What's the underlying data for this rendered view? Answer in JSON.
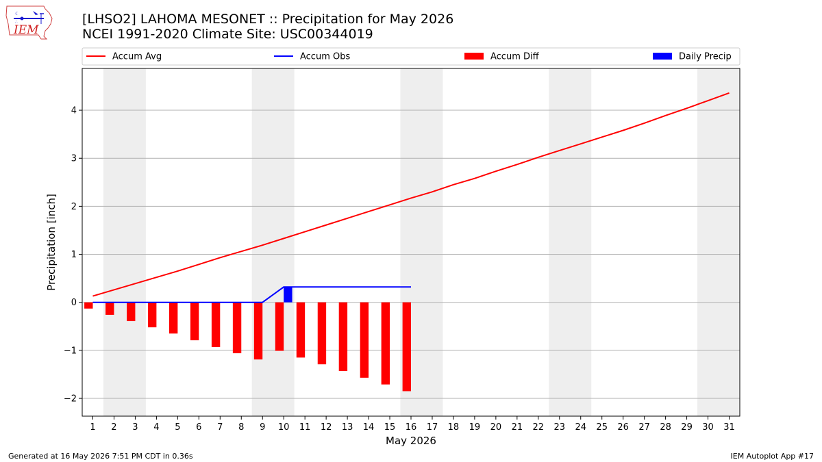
{
  "header": {
    "title_line1": "[LHSO2] LAHOMA MESONET :: Precipitation for May 2026",
    "title_line2": "NCEI 1991-2020 Climate Site: USC00344019"
  },
  "logo": {
    "text": "IEM",
    "icon": "iem-iowa-map-logo-icon"
  },
  "footer": {
    "left": "Generated at 16 May 2026 7:51 PM CDT in 0.36s",
    "right": "IEM Autoplot App #17"
  },
  "colors": {
    "avg": "#ff0000",
    "obs": "#0000ff",
    "diff": "#ff0000",
    "daily": "#0000ff",
    "weekend": "#eeeeee",
    "grid": "#b0b0b0"
  },
  "chart_data": {
    "type": "bar",
    "xlabel": "May 2026",
    "ylabel": "Precipitation [inch]",
    "xlim": [
      0.5,
      31.5
    ],
    "ylim": [
      -2.37,
      4.87
    ],
    "xticks": [
      1,
      2,
      3,
      4,
      5,
      6,
      7,
      8,
      9,
      10,
      11,
      12,
      13,
      14,
      15,
      16,
      17,
      18,
      19,
      20,
      21,
      22,
      23,
      24,
      25,
      26,
      27,
      28,
      29,
      30,
      31
    ],
    "yticks": [
      -2,
      -1,
      0,
      1,
      2,
      3,
      4
    ],
    "grid": "y",
    "legend_position": "top",
    "weekend_shading_days": [
      [
        2,
        3
      ],
      [
        9,
        10
      ],
      [
        16,
        17
      ],
      [
        23,
        24
      ],
      [
        30,
        31
      ]
    ],
    "series": [
      {
        "name": "Accum Avg",
        "kind": "line",
        "color": "#ff0000",
        "x": [
          1,
          2,
          3,
          4,
          5,
          6,
          7,
          8,
          9,
          10,
          11,
          12,
          13,
          14,
          15,
          16,
          17,
          18,
          19,
          20,
          21,
          22,
          23,
          24,
          25,
          26,
          27,
          28,
          29,
          30,
          31
        ],
        "values": [
          0.13,
          0.26,
          0.39,
          0.52,
          0.65,
          0.79,
          0.93,
          1.06,
          1.19,
          1.33,
          1.47,
          1.61,
          1.75,
          1.89,
          2.03,
          2.17,
          2.3,
          2.45,
          2.58,
          2.73,
          2.87,
          3.02,
          3.16,
          3.3,
          3.44,
          3.58,
          3.73,
          3.89,
          4.04,
          4.2,
          4.36
        ]
      },
      {
        "name": "Accum Obs",
        "kind": "line",
        "color": "#0000ff",
        "x": [
          1,
          2,
          3,
          4,
          5,
          6,
          7,
          8,
          9,
          10,
          11,
          12,
          13,
          14,
          15,
          16
        ],
        "values": [
          0,
          0,
          0,
          0,
          0,
          0,
          0,
          0,
          0,
          0.32,
          0.32,
          0.32,
          0.32,
          0.32,
          0.32,
          0.32
        ]
      },
      {
        "name": "Accum Diff",
        "kind": "bar",
        "color": "#ff0000",
        "offset": -0.2,
        "x": [
          1,
          2,
          3,
          4,
          5,
          6,
          7,
          8,
          9,
          10,
          11,
          12,
          13,
          14,
          15,
          16
        ],
        "values": [
          -0.13,
          -0.26,
          -0.39,
          -0.52,
          -0.65,
          -0.79,
          -0.93,
          -1.06,
          -1.19,
          -1.01,
          -1.15,
          -1.29,
          -1.43,
          -1.57,
          -1.71,
          -1.85
        ]
      },
      {
        "name": "Daily Precip",
        "kind": "bar",
        "color": "#0000ff",
        "offset": 0.2,
        "x": [
          1,
          2,
          3,
          4,
          5,
          6,
          7,
          8,
          9,
          10,
          11,
          12,
          13,
          14,
          15,
          16
        ],
        "values": [
          0,
          0,
          0,
          0,
          0,
          0,
          0,
          0,
          0,
          0.32,
          0,
          0,
          0,
          0,
          0,
          0
        ]
      }
    ]
  }
}
